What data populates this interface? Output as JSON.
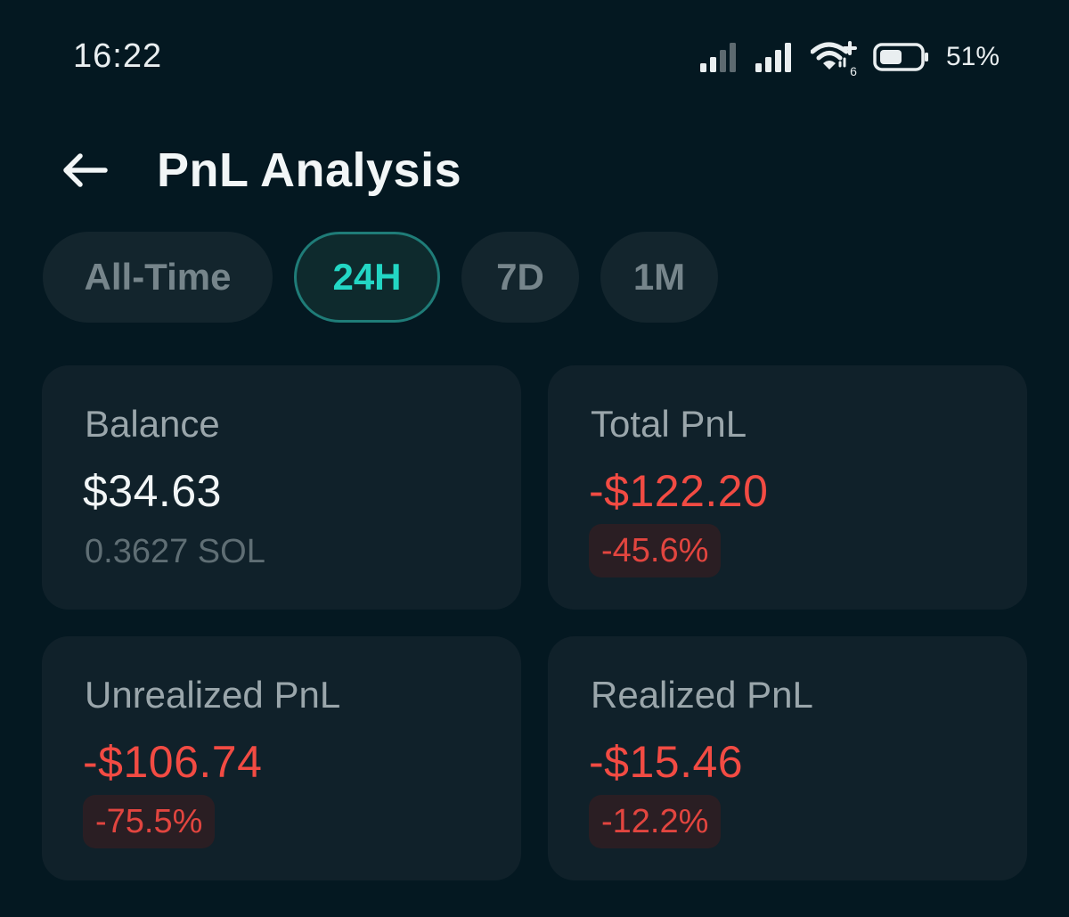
{
  "status_bar": {
    "time": "16:22",
    "battery_percent": "51%",
    "wifi_badge": "6",
    "icons": [
      "signal-bars-icon",
      "signal-bars-icon",
      "wifi-icon",
      "battery-icon"
    ]
  },
  "header": {
    "back_icon": "arrow-left-icon",
    "title": "PnL Analysis"
  },
  "tabs": [
    {
      "label": "All-Time",
      "active": false
    },
    {
      "label": "24H",
      "active": true
    },
    {
      "label": "7D",
      "active": false
    },
    {
      "label": "1M",
      "active": false
    }
  ],
  "cards": {
    "balance": {
      "label": "Balance",
      "value": "$34.63",
      "sub": "0.3627 SOL"
    },
    "total_pnl": {
      "label": "Total PnL",
      "value": "-$122.20",
      "percent": "-45.6%"
    },
    "unrealized_pnl": {
      "label": "Unrealized PnL",
      "value": "-$106.74",
      "percent": "-75.5%"
    },
    "realized_pnl": {
      "label": "Realized PnL",
      "value": "-$15.46",
      "percent": "-12.2%"
    }
  },
  "colors": {
    "background": "#041821",
    "card": "#10212a",
    "accent": "#23d6c4",
    "negative": "#f24b43",
    "text_primary": "#f1f5f6",
    "text_secondary": "#9aa6ab"
  }
}
